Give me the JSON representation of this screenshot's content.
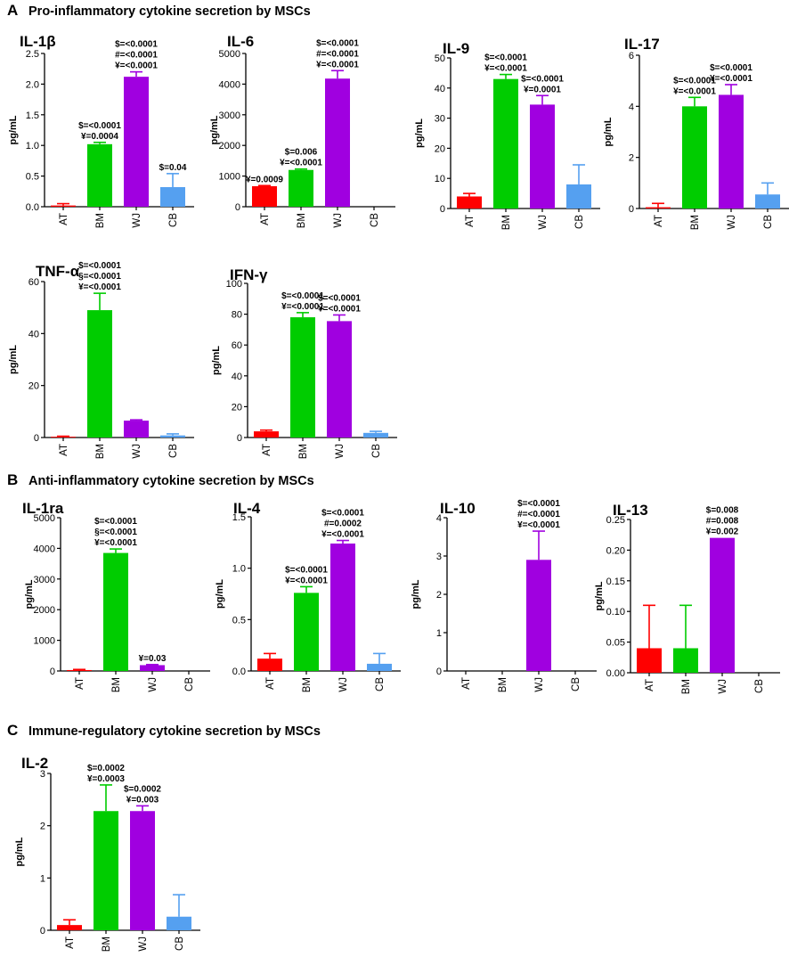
{
  "sections": [
    {
      "letter": "A",
      "title": "Pro-inflammatory cytokine secretion by MSCs"
    },
    {
      "letter": "B",
      "title": "Anti-inflammatory cytokine secretion by MSCs"
    },
    {
      "letter": "C",
      "title": "Immune-regulatory cytokine secretion by MSCs"
    }
  ],
  "colors": {
    "AT": "#ff0000",
    "BM": "#00cc00",
    "WJ": "#a000e0",
    "CB": "#55a0f0",
    "axis": "#000000"
  },
  "chart_data": [
    {
      "id": "il1b",
      "type": "bar",
      "title": "IL-1β",
      "ylabel": "pg/mL",
      "categories": [
        "AT",
        "BM",
        "WJ",
        "CB"
      ],
      "ylim": [
        0,
        2.5
      ],
      "yticks": [
        0,
        0.5,
        1.0,
        1.5,
        2.0,
        2.5
      ],
      "ytick_labels": [
        "0.0",
        "0.5",
        "1.0",
        "1.5",
        "2.0",
        "2.5"
      ],
      "values": [
        0.02,
        1.02,
        2.12,
        0.32
      ],
      "errors": [
        0.03,
        0.03,
        0.08,
        0.22
      ],
      "annotations": [
        [],
        [
          "$=<0.0001",
          "¥=0.0004"
        ],
        [
          "$=<0.0001",
          "#=<0.0001",
          "¥=<0.0001"
        ],
        [
          "$=0.04"
        ]
      ]
    },
    {
      "id": "il6",
      "type": "bar",
      "title": "IL-6",
      "ylabel": "pg/mL",
      "categories": [
        "AT",
        "BM",
        "WJ",
        "CB"
      ],
      "ylim": [
        0,
        5000
      ],
      "yticks": [
        0,
        1000,
        2000,
        3000,
        4000,
        5000
      ],
      "ytick_labels": [
        "0",
        "1000",
        "2000",
        "3000",
        "4000",
        "5000"
      ],
      "values": [
        670,
        1200,
        4180,
        0
      ],
      "errors": [
        20,
        30,
        260,
        0
      ],
      "annotations": [
        [
          "¥=0.0009"
        ],
        [
          "$=0.006",
          "¥=<0.0001"
        ],
        [
          "$=<0.0001",
          "#=<0.0001",
          "¥=<0.0001"
        ],
        []
      ]
    },
    {
      "id": "il9",
      "type": "bar",
      "title": "IL-9",
      "ylabel": "pg/mL",
      "categories": [
        "AT",
        "BM",
        "WJ",
        "CB"
      ],
      "ylim": [
        0,
        50
      ],
      "yticks": [
        0,
        10,
        20,
        30,
        40,
        50
      ],
      "ytick_labels": [
        "0",
        "10",
        "20",
        "30",
        "40",
        "50"
      ],
      "values": [
        4,
        43,
        34.5,
        8
      ],
      "errors": [
        1,
        1.5,
        3,
        6.5
      ],
      "annotations": [
        [],
        [
          "$=<0.0001",
          "¥=<0.0001"
        ],
        [
          "$=<0.0001",
          "¥=0.0001"
        ],
        []
      ]
    },
    {
      "id": "il17",
      "type": "bar",
      "title": "IL-17",
      "ylabel": "pg/mL",
      "categories": [
        "AT",
        "BM",
        "WJ",
        "CB"
      ],
      "ylim": [
        0,
        6
      ],
      "yticks": [
        0,
        2,
        4,
        6
      ],
      "ytick_labels": [
        "0",
        "2",
        "4",
        "6"
      ],
      "values": [
        0.05,
        4.0,
        4.45,
        0.55
      ],
      "errors": [
        0.15,
        0.35,
        0.4,
        0.45
      ],
      "annotations": [
        [],
        [
          "$=<0.0001",
          "¥=<0.0001"
        ],
        [
          "$=<0.0001",
          "¥=<0.0001"
        ],
        []
      ]
    },
    {
      "id": "tnfa",
      "type": "bar",
      "title": "TNF-α",
      "ylabel": "pg/mL",
      "categories": [
        "AT",
        "BM",
        "WJ",
        "CB"
      ],
      "ylim": [
        0,
        60
      ],
      "yticks": [
        0,
        20,
        40,
        60
      ],
      "ytick_labels": [
        "0",
        "20",
        "40",
        "60"
      ],
      "values": [
        0.3,
        49,
        6.5,
        0.8
      ],
      "errors": [
        0.2,
        6.5,
        0.3,
        0.6
      ],
      "annotations": [
        [],
        [
          "$=<0.0001",
          "§=<0.0001",
          "¥=<0.0001"
        ],
        [],
        []
      ]
    },
    {
      "id": "ifng",
      "type": "bar",
      "title": "IFN-γ",
      "ylabel": "pg/mL",
      "categories": [
        "AT",
        "BM",
        "WJ",
        "CB"
      ],
      "ylim": [
        0,
        100
      ],
      "yticks": [
        0,
        20,
        40,
        60,
        80,
        100
      ],
      "ytick_labels": [
        "0",
        "20",
        "40",
        "60",
        "80",
        "100"
      ],
      "values": [
        4,
        78,
        75.5,
        3
      ],
      "errors": [
        0.8,
        3,
        4,
        1
      ],
      "annotations": [
        [],
        [
          "$=<0.0001",
          "¥=<0.0001"
        ],
        [
          "$=<0.0001",
          "¥=<0.0001"
        ],
        []
      ]
    },
    {
      "id": "il1ra",
      "type": "bar",
      "title": "IL-1ra",
      "ylabel": "pg/mL",
      "categories": [
        "AT",
        "BM",
        "WJ",
        "CB"
      ],
      "ylim": [
        0,
        5000
      ],
      "yticks": [
        0,
        1000,
        2000,
        3000,
        4000,
        5000
      ],
      "ytick_labels": [
        "0",
        "1000",
        "2000",
        "3000",
        "4000",
        "5000"
      ],
      "values": [
        30,
        3850,
        190,
        0
      ],
      "errors": [
        20,
        130,
        20,
        0
      ],
      "annotations": [
        [],
        [
          "$=<0.0001",
          "§=<0.0001",
          "¥=<0.0001"
        ],
        [
          "¥=0.03"
        ],
        []
      ]
    },
    {
      "id": "il4",
      "type": "bar",
      "title": "IL-4",
      "ylabel": "pg/mL",
      "categories": [
        "AT",
        "BM",
        "WJ",
        "CB"
      ],
      "ylim": [
        0,
        1.5
      ],
      "yticks": [
        0,
        0.5,
        1.0,
        1.5
      ],
      "ytick_labels": [
        "0.0",
        "0.5",
        "1.0",
        "1.5"
      ],
      "values": [
        0.12,
        0.76,
        1.24,
        0.07
      ],
      "errors": [
        0.05,
        0.06,
        0.03,
        0.1
      ],
      "annotations": [
        [],
        [
          "$=<0.0001",
          "¥=<0.0001"
        ],
        [
          "$=<0.0001",
          "#=0.0002",
          "¥=<0.0001"
        ],
        []
      ]
    },
    {
      "id": "il10",
      "type": "bar",
      "title": "IL-10",
      "ylabel": "pg/mL",
      "categories": [
        "AT",
        "BM",
        "WJ",
        "CB"
      ],
      "ylim": [
        0,
        4
      ],
      "yticks": [
        0,
        1,
        2,
        3,
        4
      ],
      "ytick_labels": [
        "0",
        "1",
        "2",
        "3",
        "4"
      ],
      "values": [
        0,
        0,
        2.9,
        0
      ],
      "errors": [
        0,
        0,
        0.75,
        0
      ],
      "annotations": [
        [],
        [],
        [
          "$=<0.0001",
          "#=<0.0001",
          "¥=<0.0001"
        ],
        []
      ]
    },
    {
      "id": "il13",
      "type": "bar",
      "title": "IL-13",
      "ylabel": "pg/mL",
      "categories": [
        "AT",
        "BM",
        "WJ",
        "CB"
      ],
      "ylim": [
        0,
        0.25
      ],
      "yticks": [
        0,
        0.05,
        0.1,
        0.15,
        0.2,
        0.25
      ],
      "ytick_labels": [
        "0.00",
        "0.05",
        "0.10",
        "0.15",
        "0.20",
        "0.25"
      ],
      "values": [
        0.04,
        0.04,
        0.22,
        0
      ],
      "errors": [
        0.07,
        0.07,
        0,
        0
      ],
      "annotations": [
        [],
        [],
        [
          "$=0.008",
          "#=0.008",
          "¥=0.002"
        ],
        []
      ]
    },
    {
      "id": "il2",
      "type": "bar",
      "title": "IL-2",
      "ylabel": "pg/mL",
      "categories": [
        "AT",
        "BM",
        "WJ",
        "CB"
      ],
      "ylim": [
        0,
        3
      ],
      "yticks": [
        0,
        1,
        2,
        3
      ],
      "ytick_labels": [
        "0",
        "1",
        "2",
        "3"
      ],
      "values": [
        0.1,
        2.28,
        2.28,
        0.26
      ],
      "errors": [
        0.1,
        0.5,
        0.1,
        0.42
      ],
      "annotations": [
        [],
        [
          "$=0.0002",
          "¥=0.0003"
        ],
        [
          "$=0.0002",
          "¥=0.003"
        ],
        []
      ]
    }
  ]
}
